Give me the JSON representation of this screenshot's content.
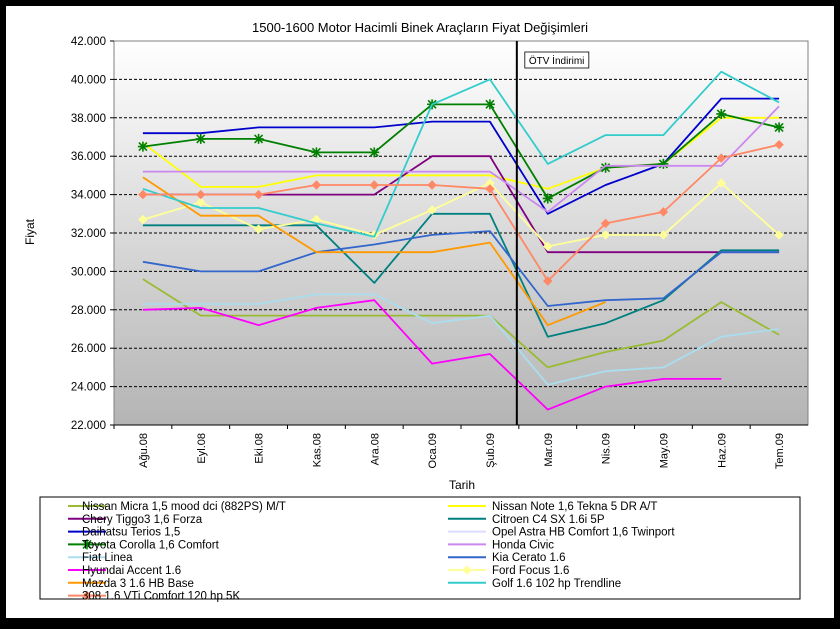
{
  "chart_data": {
    "type": "line",
    "title": "1500-1600 Motor Hacimli Binek Araçların Fiyat Değişimleri",
    "xlabel": "Tarih",
    "ylabel": "Fiyat",
    "categories": [
      "Ağu.08",
      "Eyl.08",
      "Eki.08",
      "Kas.08",
      "Ara.08",
      "Oca.09",
      "Şub.09",
      "Mar.09",
      "Nis.09",
      "May.09",
      "Haz.09",
      "Tem.09"
    ],
    "ylim": [
      22000,
      42000
    ],
    "yticks": [
      "22.000",
      "24.000",
      "26.000",
      "28.000",
      "30.000",
      "32.000",
      "34.000",
      "36.000",
      "38.000",
      "40.000",
      "42.000"
    ],
    "grid": true,
    "legend_position": "bottom",
    "annotation": {
      "label": "ÖTV İndirimi",
      "at_category": "Mar.09"
    },
    "series": [
      {
        "name": "Nissan Micra 1,5 mood dci (882PS) M/T",
        "color": "#99BB33",
        "marker": "none",
        "values": [
          29600,
          27700,
          27700,
          27700,
          27700,
          27700,
          27700,
          25000,
          25800,
          26400,
          28400,
          26700
        ]
      },
      {
        "name": "Nissan Note 1,6 Tekna 5 DR A/T",
        "color": "#FFFF00",
        "marker": "none",
        "values": [
          36700,
          34400,
          34400,
          35000,
          35000,
          35000,
          35000,
          34300,
          35400,
          35600,
          38000,
          38000
        ]
      },
      {
        "name": "Chery Tiggo3 1,6 Forza",
        "color": "#800080",
        "marker": "none",
        "values": [
          34000,
          34000,
          34000,
          34000,
          34000,
          36000,
          36000,
          31000,
          31000,
          31000,
          31000,
          31000
        ]
      },
      {
        "name": "Citroen C4 SX 1.6i 5P",
        "color": "#008080",
        "marker": "none",
        "values": [
          32400,
          32400,
          32400,
          32400,
          29400,
          33000,
          33000,
          26600,
          27300,
          28500,
          31100,
          31100
        ]
      },
      {
        "name": "Daihatsu Terios 1,5",
        "color": "#0000CC",
        "marker": "none",
        "values": [
          37200,
          37200,
          37500,
          37500,
          37500,
          37800,
          37800,
          33000,
          34500,
          35600,
          39000,
          39000
        ]
      },
      {
        "name": "Opel Astra HB Comfort 1,6 Twinport",
        "color": "#DDDDFF",
        "marker": "none",
        "values": [
          null,
          null,
          null,
          null,
          null,
          null,
          null,
          null,
          null,
          null,
          null,
          null
        ]
      },
      {
        "name": "Toyota Corolla 1,6 Comfort",
        "color": "#008000",
        "marker": "star",
        "values": [
          36500,
          36900,
          36900,
          36200,
          36200,
          38700,
          38700,
          33800,
          35400,
          35600,
          38200,
          37500
        ]
      },
      {
        "name": "Honda Civic",
        "color": "#CC88EE",
        "marker": "none",
        "values": [
          35200,
          35200,
          35200,
          35200,
          35200,
          35200,
          35200,
          33100,
          35500,
          35500,
          35500,
          38600
        ]
      },
      {
        "name": "Fiat Linea",
        "color": "#AADDEE",
        "marker": "none",
        "values": [
          28300,
          28300,
          28300,
          28800,
          28800,
          27300,
          27700,
          24100,
          24800,
          25000,
          26600,
          27000
        ]
      },
      {
        "name": "Kia Cerato 1.6",
        "color": "#3366CC",
        "marker": "none",
        "values": [
          30500,
          30000,
          30000,
          31000,
          31400,
          31900,
          32100,
          28200,
          28500,
          28600,
          31000,
          31000
        ]
      },
      {
        "name": "Hyundai Accent 1.6",
        "color": "#FF00FF",
        "marker": "none",
        "values": [
          28000,
          28100,
          27200,
          28100,
          28500,
          25200,
          25700,
          22800,
          24000,
          24400,
          24400,
          null
        ]
      },
      {
        "name": "Ford Focus 1.6",
        "color": "#FFFF99",
        "marker": "diamond",
        "values": [
          32700,
          33600,
          32200,
          32700,
          31900,
          33200,
          34600,
          31300,
          31900,
          31900,
          34600,
          31900
        ]
      },
      {
        "name": "Mazda 3 1.6 HB Base",
        "color": "#FF9900",
        "marker": "none",
        "values": [
          34900,
          32900,
          32900,
          31000,
          31000,
          31000,
          31500,
          27200,
          28400,
          null,
          null,
          null
        ]
      },
      {
        "name": "Golf 1.6 102 hp Trendline",
        "color": "#33CCCC",
        "marker": "none",
        "values": [
          34300,
          33300,
          33300,
          32500,
          31800,
          38700,
          40000,
          35600,
          37100,
          37100,
          40400,
          38800
        ]
      },
      {
        "name": "308 1.6 VTi Comfort 120 hp 5K",
        "color": "#FF8866",
        "marker": "diamond",
        "values": [
          34000,
          34000,
          34000,
          34500,
          34500,
          34500,
          34300,
          29500,
          32500,
          33100,
          35900,
          36600
        ]
      }
    ]
  }
}
